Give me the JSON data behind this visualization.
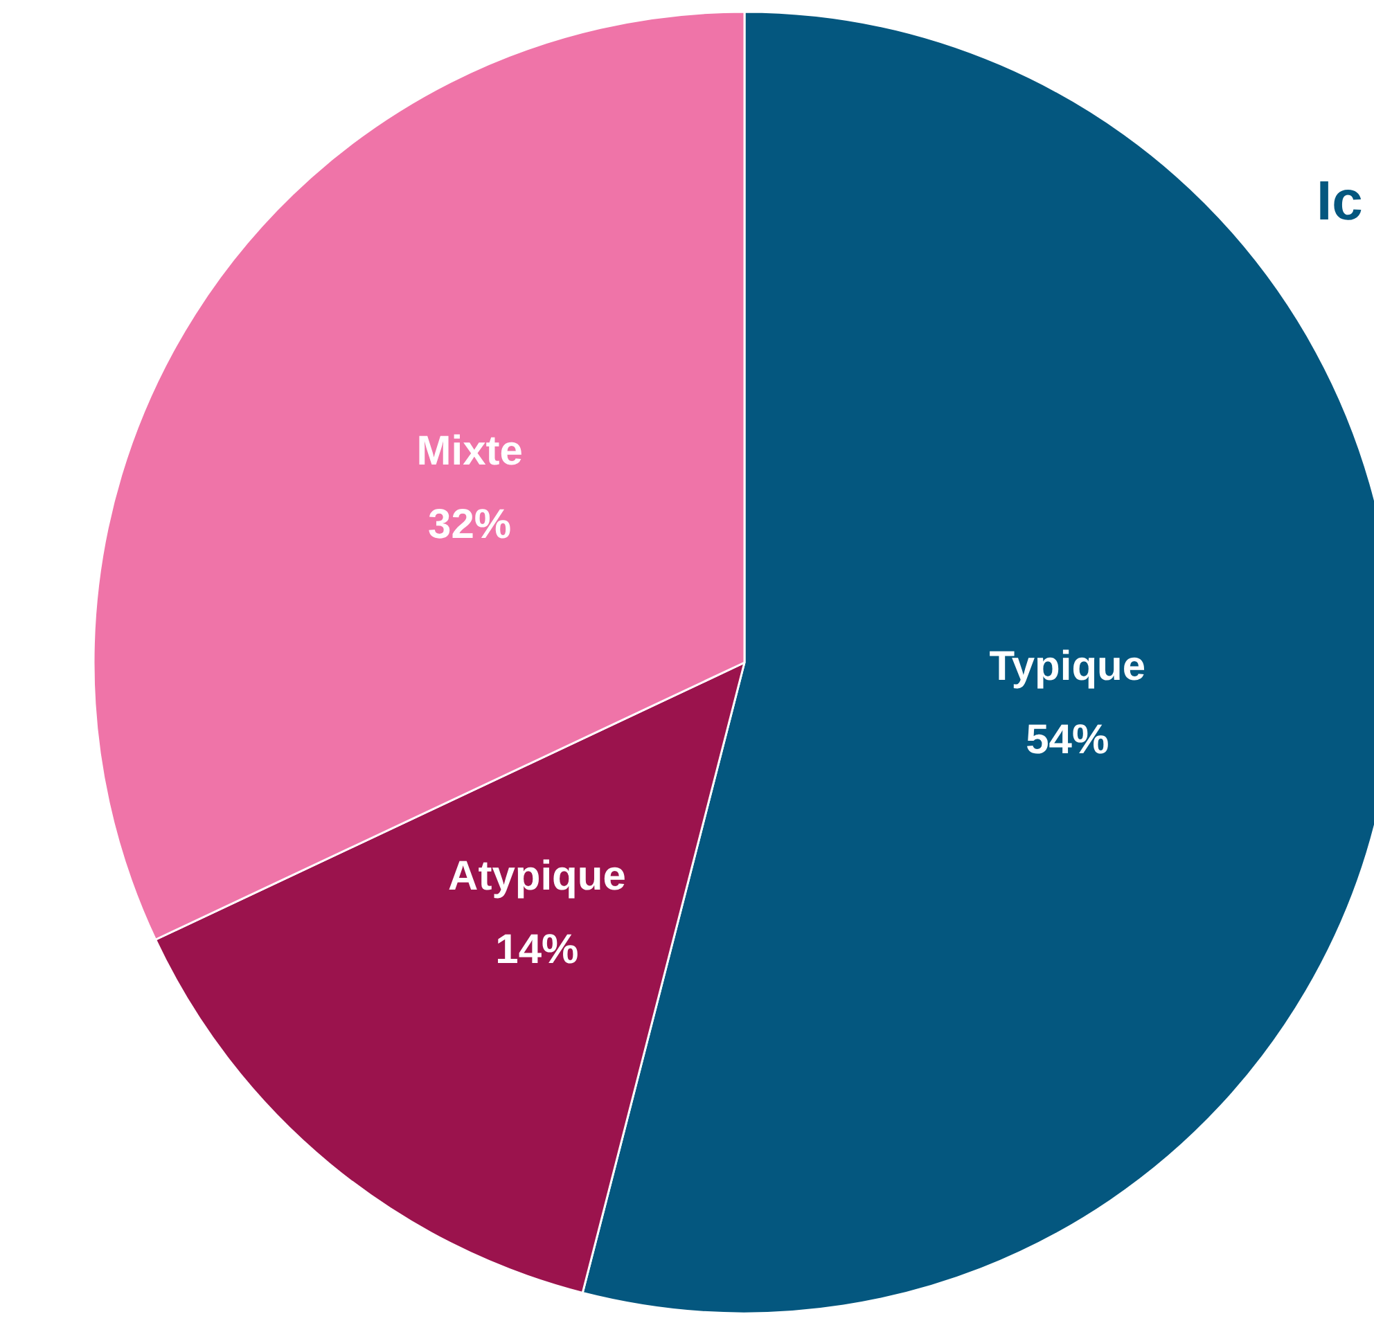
{
  "chart_data": {
    "type": "pie",
    "categories": [
      "Typique",
      "Atypique",
      "Mixte"
    ],
    "values": [
      54,
      14,
      32
    ],
    "colors": [
      "#04577f",
      "#9b134d",
      "#ef74a8"
    ],
    "value_labels": [
      "54%",
      "14%",
      "32%"
    ],
    "annotations": [
      "Ic"
    ]
  }
}
